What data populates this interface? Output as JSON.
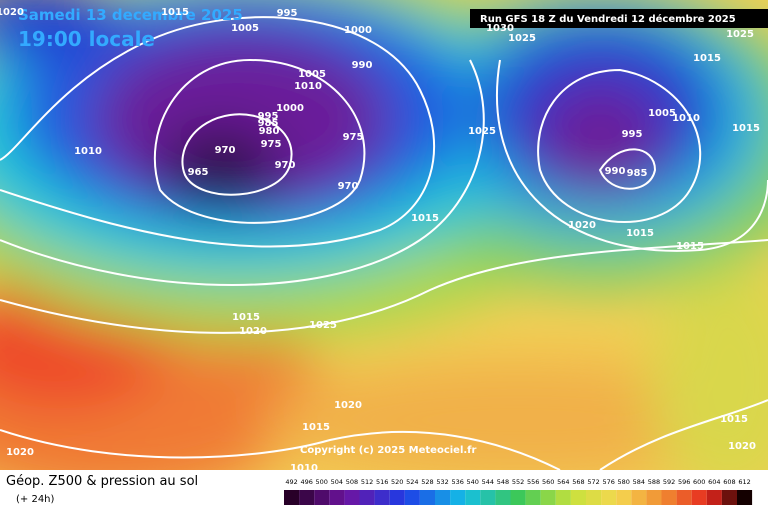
{
  "header": {
    "date": "Samedi 13 decembre 2025",
    "time": "19:00 locale",
    "run": "Run GFS 18 Z du Vendredi 12 décembre 2025"
  },
  "legend": {
    "title": "Géop. Z500 & pression au sol",
    "lead": "(+ 24h)",
    "scale": [
      492,
      496,
      500,
      504,
      508,
      512,
      516,
      520,
      524,
      528,
      532,
      536,
      540,
      544,
      548,
      552,
      556,
      560,
      564,
      568,
      572,
      576,
      580,
      584,
      588,
      592,
      596,
      600,
      604,
      608,
      612
    ]
  },
  "copyright": "Copyright (c) 2025 Meteociel.fr",
  "isobar_labels": [
    "1020",
    "1015",
    "1005",
    "995",
    "1000",
    "990",
    "1005",
    "1010",
    "1000",
    "995",
    "985",
    "980",
    "975",
    "970",
    "975",
    "965",
    "970",
    "970",
    "1010",
    "1030",
    "1025",
    "1025",
    "1025",
    "995",
    "1005",
    "1010",
    "990",
    "985",
    "1015",
    "1015",
    "1020",
    "1015",
    "1015",
    "1015",
    "1015",
    "1020",
    "1025",
    "1020",
    "1015",
    "1010",
    "1020",
    "1015",
    "1020"
  ]
}
